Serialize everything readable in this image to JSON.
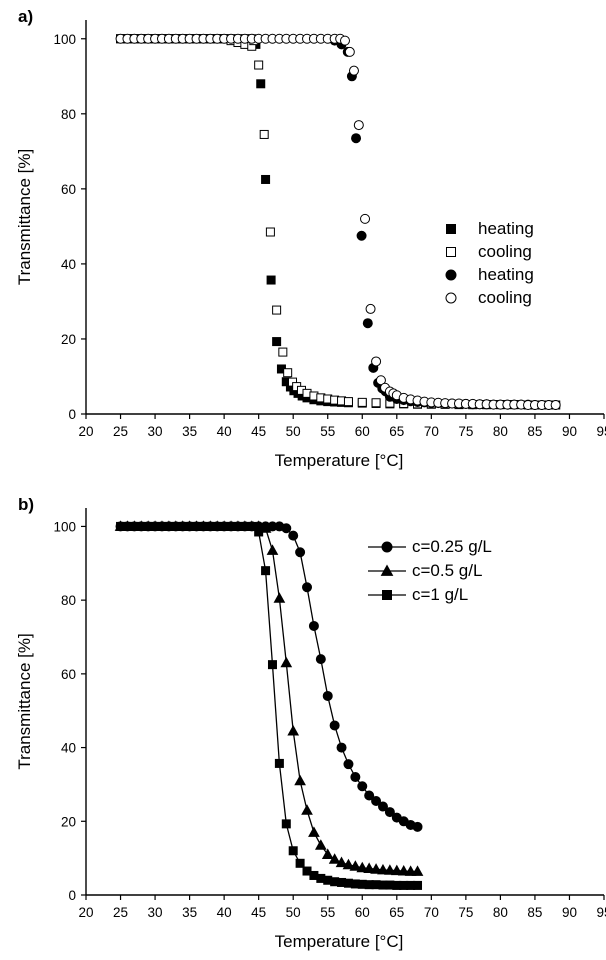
{
  "chart_data": [
    {
      "panel": "a)",
      "type": "scatter",
      "xlabel": "Temperature [°C]",
      "ylabel": "Transmittance [%]",
      "xlim": [
        20,
        95
      ],
      "ylim": [
        0,
        105
      ],
      "xticks": [
        "20",
        "25",
        "30",
        "35",
        "40",
        "45",
        "50",
        "55",
        "60",
        "65",
        "70",
        "75",
        "80",
        "85",
        "90",
        "95"
      ],
      "yticks": [
        "0",
        "20",
        "40",
        "60",
        "80",
        "100"
      ],
      "grid": false,
      "legend_position": "middle-right",
      "series": [
        {
          "name": "heating",
          "marker": "square",
          "fill": "#000000",
          "x": [
            25,
            26,
            27,
            28,
            29,
            30,
            31,
            32,
            33,
            34,
            35,
            36,
            37,
            38,
            39,
            40,
            41,
            42,
            43,
            44,
            44.6,
            45.3,
            46.0,
            46.8,
            47.6,
            48.3,
            49.0,
            49.6,
            50.1,
            50.7,
            51.3,
            52,
            53,
            54,
            55,
            56,
            57,
            58,
            60,
            62,
            64,
            66,
            68,
            70,
            72,
            74,
            76,
            78,
            80,
            82,
            84,
            86,
            88
          ],
          "y": [
            100,
            100,
            100,
            100,
            100,
            100,
            100,
            100,
            100,
            100,
            100,
            100,
            100,
            100,
            100,
            100,
            100,
            100,
            100,
            100,
            98.5,
            88,
            62.5,
            35.7,
            19.3,
            12,
            8.6,
            7.2,
            6.2,
            5.5,
            4.8,
            4.3,
            3.8,
            3.5,
            3.3,
            3.2,
            3.1,
            3.0,
            2.9,
            2.8,
            2.7,
            2.7,
            2.6,
            2.6,
            2.6,
            2.5,
            2.5,
            2.5,
            2.5,
            2.5,
            2.4,
            2.4,
            2.4
          ]
        },
        {
          "name": "cooling",
          "marker": "square",
          "fill": "#ffffff",
          "x": [
            25,
            26,
            27,
            28,
            29,
            30,
            31,
            32,
            33,
            34,
            35,
            36,
            37,
            38,
            39,
            40,
            41,
            42,
            43,
            44,
            44.3,
            45.0,
            45.8,
            46.7,
            47.6,
            48.5,
            49.2,
            49.9,
            50.5,
            51.2,
            52,
            53,
            54,
            55,
            56,
            57,
            58,
            60,
            62,
            64,
            66,
            68,
            70,
            72,
            74,
            76,
            78,
            80,
            82,
            84,
            86,
            88
          ],
          "y": [
            100,
            100,
            100,
            100,
            100,
            100,
            100,
            100,
            100,
            100,
            100,
            100,
            100,
            100,
            100,
            100,
            99.5,
            99,
            98.5,
            98,
            99.5,
            93,
            74.5,
            48.5,
            27.7,
            16.5,
            11,
            8.5,
            7.3,
            6.3,
            5.5,
            4.8,
            4.3,
            4,
            3.7,
            3.5,
            3.3,
            3.1,
            3,
            2.9,
            2.8,
            2.7,
            2.7,
            2.6,
            2.6,
            2.5,
            2.5,
            2.5,
            2.5,
            2.4,
            2.4,
            2.4
          ]
        },
        {
          "name": "heating",
          "marker": "circle",
          "fill": "#000000",
          "x": [
            56,
            57,
            57.9,
            58.5,
            59.1,
            59.9,
            60.8,
            61.6,
            62.3,
            62.9,
            63.4,
            64,
            65,
            66,
            67,
            68,
            69,
            70,
            71,
            72,
            73,
            74,
            75,
            76,
            77,
            78,
            79,
            80,
            81,
            82,
            83,
            84,
            85,
            86,
            87,
            88
          ],
          "y": [
            99.5,
            98.5,
            96.5,
            90,
            73.5,
            47.5,
            24.2,
            12.3,
            8.3,
            6.8,
            6,
            4.6,
            4,
            3.7,
            3.4,
            3.2,
            3.1,
            3,
            2.9,
            2.8,
            2.8,
            2.7,
            2.7,
            2.6,
            2.6,
            2.6,
            2.5,
            2.5,
            2.5,
            2.5,
            2.5,
            2.5,
            2.4,
            2.4,
            2.4,
            2.4
          ]
        },
        {
          "name": "cooling",
          "marker": "circle",
          "fill": "#ffffff",
          "x": [
            25,
            26,
            27,
            28,
            29,
            30,
            31,
            32,
            33,
            34,
            35,
            36,
            37,
            38,
            39,
            40,
            41,
            42,
            43,
            44,
            45,
            46,
            47,
            48,
            49,
            50,
            51,
            52,
            53,
            54,
            55,
            56,
            56.8,
            57.5,
            58.2,
            58.8,
            59.5,
            60.4,
            61.2,
            62.0,
            62.7,
            63.3,
            64.0,
            64.5,
            65,
            66,
            67,
            68,
            69,
            70,
            71,
            72,
            73,
            74,
            75,
            76,
            77,
            78,
            79,
            80,
            81,
            82,
            83,
            84,
            85,
            86,
            87,
            88
          ],
          "y": [
            100,
            100,
            100,
            100,
            100,
            100,
            100,
            100,
            100,
            100,
            100,
            100,
            100,
            100,
            100,
            100,
            100,
            100,
            100,
            100,
            100,
            100,
            100,
            100,
            100,
            100,
            100,
            100,
            100,
            100,
            100,
            100,
            100,
            99.5,
            96.5,
            91.5,
            77,
            52,
            28,
            14,
            9,
            7,
            6,
            5.5,
            5,
            4.3,
            3.9,
            3.6,
            3.3,
            3.1,
            3,
            2.9,
            2.8,
            2.8,
            2.7,
            2.7,
            2.6,
            2.6,
            2.5,
            2.5,
            2.5,
            2.5,
            2.5,
            2.4,
            2.4,
            2.4,
            2.4,
            2.4
          ]
        }
      ]
    },
    {
      "panel": "b)",
      "type": "line",
      "xlabel": "Temperature [°C]",
      "ylabel": "Transmittance [%]",
      "xlim": [
        20,
        95
      ],
      "ylim": [
        0,
        105
      ],
      "xticks": [
        "20",
        "25",
        "30",
        "35",
        "40",
        "45",
        "50",
        "55",
        "60",
        "65",
        "70",
        "75",
        "80",
        "85",
        "90",
        "95"
      ],
      "yticks": [
        "0",
        "20",
        "40",
        "60",
        "80",
        "100"
      ],
      "grid": false,
      "legend_position": "top-right",
      "series": [
        {
          "name": "c=0.25 g/L",
          "marker": "circle",
          "x": [
            25,
            26,
            27,
            28,
            29,
            30,
            31,
            32,
            33,
            34,
            35,
            36,
            37,
            38,
            39,
            40,
            41,
            42,
            43,
            44,
            45,
            46,
            47,
            48,
            49,
            50,
            51,
            52,
            53,
            54,
            55,
            56,
            57,
            58,
            59,
            60,
            61,
            62,
            63,
            64,
            65,
            66,
            67,
            68
          ],
          "y": [
            100,
            100,
            100,
            100,
            100,
            100,
            100,
            100,
            100,
            100,
            100,
            100,
            100,
            100,
            100,
            100,
            100,
            100,
            100,
            100,
            100,
            100,
            100,
            100,
            99.5,
            97.5,
            93,
            83.5,
            73,
            64,
            54,
            46,
            40,
            35.5,
            32,
            29.5,
            27,
            25.5,
            24,
            22.5,
            21,
            20,
            19,
            18.5
          ]
        },
        {
          "name": "c=0.5 g/L",
          "marker": "triangle",
          "x": [
            25,
            26,
            27,
            28,
            29,
            30,
            31,
            32,
            33,
            34,
            35,
            36,
            37,
            38,
            39,
            40,
            41,
            42,
            43,
            44,
            45,
            46,
            47,
            48,
            49,
            50,
            51,
            52,
            53,
            54,
            55,
            56,
            57,
            58,
            59,
            60,
            61,
            62,
            63,
            64,
            65,
            66,
            67,
            68
          ],
          "y": [
            100,
            100,
            100,
            100,
            100,
            100,
            100,
            100,
            100,
            100,
            100,
            100,
            100,
            100,
            100,
            100,
            100,
            100,
            100,
            100,
            100,
            99.5,
            93.5,
            80.5,
            63,
            44.5,
            31,
            23,
            17,
            13.5,
            11,
            9.7,
            8.8,
            8.2,
            7.8,
            7.4,
            7.2,
            7,
            6.8,
            6.7,
            6.6,
            6.5,
            6.4,
            6.4
          ]
        },
        {
          "name": "c=1 g/L",
          "marker": "square",
          "x": [
            25,
            26,
            27,
            28,
            29,
            30,
            31,
            32,
            33,
            34,
            35,
            36,
            37,
            38,
            39,
            40,
            41,
            42,
            43,
            44,
            45,
            46,
            47,
            48,
            49,
            50,
            51,
            52,
            53,
            54,
            55,
            56,
            57,
            58,
            59,
            60,
            61,
            62,
            63,
            64,
            65,
            66,
            67,
            68
          ],
          "y": [
            100,
            100,
            100,
            100,
            100,
            100,
            100,
            100,
            100,
            100,
            100,
            100,
            100,
            100,
            100,
            100,
            100,
            100,
            100,
            100,
            98.5,
            88,
            62.5,
            35.7,
            19.3,
            12,
            8.6,
            6.5,
            5.3,
            4.5,
            4,
            3.6,
            3.4,
            3.2,
            3,
            2.9,
            2.8,
            2.8,
            2.7,
            2.7,
            2.6,
            2.6,
            2.6,
            2.6
          ]
        }
      ]
    }
  ]
}
